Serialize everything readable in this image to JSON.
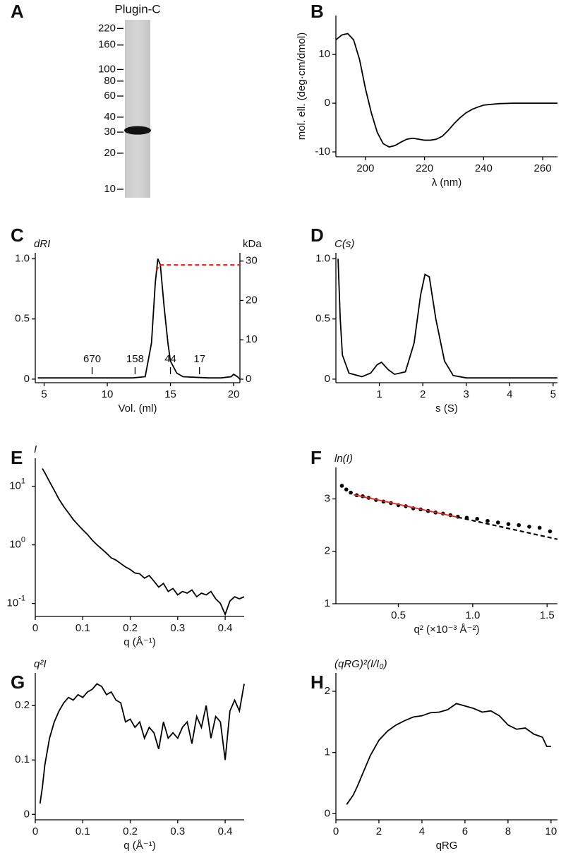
{
  "chart_data": [
    {
      "type": "gel",
      "panel": "A",
      "title": "Plugin-C",
      "markers": [
        220,
        160,
        100,
        80,
        60,
        40,
        30,
        20,
        10
      ],
      "band": 31,
      "ylim": [
        8.5,
        260
      ],
      "ylog": true
    },
    {
      "type": "line",
      "panel": "B",
      "xlabel": "λ (nm)",
      "ylabel": "mol. ell. (deg·cm/dmol)",
      "xlim": [
        190,
        265
      ],
      "ylim": [
        -11,
        18
      ],
      "xticks": [
        200,
        220,
        240,
        260
      ],
      "yticks": [
        -10,
        0,
        10
      ],
      "series": [
        {
          "color": "#000000",
          "style": "line",
          "x": [
            190,
            192,
            194,
            196,
            198,
            200,
            202,
            204,
            206,
            208,
            210,
            212,
            214,
            216,
            218,
            220,
            222,
            224,
            226,
            228,
            230,
            232,
            234,
            236,
            238,
            240,
            245,
            250,
            265
          ],
          "values": [
            13,
            14,
            14.3,
            13,
            9,
            3,
            -2,
            -6,
            -8.3,
            -9,
            -8.7,
            -8,
            -7.4,
            -7.2,
            -7.4,
            -7.6,
            -7.6,
            -7.4,
            -6.8,
            -5.6,
            -4.2,
            -3,
            -2,
            -1.3,
            -0.8,
            -0.4,
            -0.1,
            0,
            0
          ]
        }
      ]
    },
    {
      "type": "line",
      "panel": "C",
      "xlabel": "Vol. (ml)",
      "ylabel": "dRI",
      "y2label": "kDa",
      "xlim": [
        4.3,
        20.5
      ],
      "ylim": [
        -0.03,
        1.05
      ],
      "y2lim": [
        -0.9,
        32.1
      ],
      "xticks": [
        5,
        10,
        15,
        20
      ],
      "yticks": [
        0,
        0.5,
        {
          "value": 1,
          "label": "1.0"
        }
      ],
      "y2ticks": [
        0,
        10,
        20,
        30
      ],
      "markers": [
        {
          "x": 8.8,
          "label": "670"
        },
        {
          "x": 12.2,
          "label": "158"
        },
        {
          "x": 15,
          "label": "44"
        },
        {
          "x": 17.3,
          "label": "17"
        }
      ],
      "series": [
        {
          "color": "#000000",
          "style": "line",
          "x": [
            4.5,
            8,
            12,
            13,
            13.5,
            13.8,
            14,
            14.2,
            14.5,
            14.8,
            15,
            15.5,
            16,
            18,
            19,
            19.8,
            20,
            20.3,
            20.5
          ],
          "values": [
            0.01,
            0.01,
            0.01,
            0.02,
            0.3,
            0.8,
            1.0,
            0.95,
            0.6,
            0.3,
            0.15,
            0.05,
            0.02,
            0.01,
            0.01,
            0.02,
            0.04,
            0.02,
            0.0
          ]
        },
        {
          "color": "#e8231f",
          "style": "dashed",
          "axis": "y2",
          "x": [
            13.9,
            14.1,
            20.5
          ],
          "values": [
            27.5,
            29,
            29
          ]
        }
      ]
    },
    {
      "type": "line",
      "panel": "D",
      "xlabel": "s (S)",
      "ylabel": "C(s)",
      "xlim": [
        0,
        5.1
      ],
      "ylim": [
        -0.03,
        1.05
      ],
      "xticks": [
        1,
        2,
        3,
        4,
        5
      ],
      "yticks": [
        0,
        0.5,
        {
          "value": 1,
          "label": "1.0"
        }
      ],
      "series": [
        {
          "color": "#000000",
          "style": "line",
          "x": [
            0.05,
            0.1,
            0.15,
            0.3,
            0.6,
            0.8,
            0.95,
            1.05,
            1.2,
            1.35,
            1.6,
            1.8,
            1.95,
            2.05,
            2.15,
            2.3,
            2.5,
            2.7,
            3,
            5.1
          ],
          "values": [
            1.0,
            0.5,
            0.2,
            0.05,
            0.02,
            0.05,
            0.12,
            0.14,
            0.08,
            0.04,
            0.06,
            0.3,
            0.7,
            0.87,
            0.85,
            0.5,
            0.15,
            0.03,
            0.01,
            0.01
          ]
        }
      ]
    },
    {
      "type": "line",
      "panel": "E",
      "xlabel": "q (Å⁻¹)",
      "ylabel": "I",
      "ylog": true,
      "xlim": [
        0,
        0.44
      ],
      "ylim": [
        0.06,
        30
      ],
      "xticks": [
        0,
        0.1,
        0.2,
        0.3,
        0.4
      ],
      "yticks": [
        {
          "value": 0.1,
          "label": "10",
          "sup": "-1"
        },
        {
          "value": 1,
          "label": "10",
          "sup": "0"
        },
        {
          "value": 10,
          "label": "10",
          "sup": "1"
        }
      ],
      "series": [
        {
          "color": "#000000",
          "style": "line",
          "x": [
            0.015,
            0.02,
            0.03,
            0.04,
            0.05,
            0.06,
            0.07,
            0.08,
            0.09,
            0.1,
            0.11,
            0.12,
            0.13,
            0.14,
            0.15,
            0.16,
            0.17,
            0.18,
            0.19,
            0.2,
            0.21,
            0.22,
            0.23,
            0.24,
            0.25,
            0.26,
            0.27,
            0.28,
            0.29,
            0.3,
            0.31,
            0.32,
            0.33,
            0.34,
            0.35,
            0.36,
            0.37,
            0.38,
            0.39,
            0.4,
            0.41,
            0.42,
            0.43,
            0.44
          ],
          "values": [
            20,
            17,
            12,
            8.5,
            6,
            4.5,
            3.5,
            2.7,
            2.2,
            1.8,
            1.5,
            1.2,
            1.0,
            0.85,
            0.72,
            0.6,
            0.55,
            0.48,
            0.42,
            0.38,
            0.33,
            0.32,
            0.27,
            0.3,
            0.24,
            0.19,
            0.22,
            0.16,
            0.18,
            0.14,
            0.16,
            0.15,
            0.17,
            0.13,
            0.15,
            0.14,
            0.16,
            0.12,
            0.1,
            0.065,
            0.11,
            0.13,
            0.12,
            0.13
          ]
        }
      ]
    },
    {
      "type": "line",
      "panel": "F",
      "xlabel": "q² (×10⁻³ Å⁻²)",
      "ylabel": "ln(I)",
      "xlim": [
        0.08,
        1.57
      ],
      "ylim": [
        1,
        3.6
      ],
      "xticks": [
        0.5,
        {
          "value": 1,
          "label": "1.0"
        },
        1.5
      ],
      "yticks": [
        1,
        2,
        3
      ],
      "series": [
        {
          "color": "#000000",
          "style": "points",
          "x": [
            0.12,
            0.15,
            0.18,
            0.22,
            0.26,
            0.3,
            0.35,
            0.4,
            0.45,
            0.5,
            0.55,
            0.6,
            0.65,
            0.7,
            0.75,
            0.8,
            0.85,
            0.9,
            0.96,
            1.03,
            1.1,
            1.17,
            1.24,
            1.31,
            1.38,
            1.45,
            1.52
          ],
          "values": [
            3.25,
            3.18,
            3.12,
            3.07,
            3.05,
            3.02,
            2.98,
            2.95,
            2.92,
            2.88,
            2.86,
            2.82,
            2.8,
            2.77,
            2.74,
            2.72,
            2.69,
            2.66,
            2.64,
            2.62,
            2.58,
            2.55,
            2.52,
            2.5,
            2.47,
            2.45,
            2.38
          ]
        },
        {
          "color": "#e8231f",
          "style": "line",
          "x": [
            0.2,
            0.9
          ],
          "values": [
            3.08,
            2.65
          ]
        },
        {
          "color": "#000000",
          "style": "dashed",
          "x": [
            0.9,
            1.57
          ],
          "values": [
            2.65,
            2.23
          ]
        }
      ]
    },
    {
      "type": "line",
      "panel": "G",
      "xlabel": "q (Å⁻¹)",
      "ylabel": "q²I",
      "xlim": [
        0,
        0.44
      ],
      "ylim": [
        -0.01,
        0.26
      ],
      "xticks": [
        0,
        0.1,
        0.2,
        0.3,
        0.4
      ],
      "yticks": [
        0,
        0.1,
        0.2
      ],
      "series": [
        {
          "color": "#000000",
          "style": "line",
          "x": [
            0.01,
            0.015,
            0.02,
            0.03,
            0.04,
            0.05,
            0.06,
            0.07,
            0.08,
            0.09,
            0.1,
            0.11,
            0.12,
            0.13,
            0.14,
            0.15,
            0.16,
            0.17,
            0.18,
            0.19,
            0.2,
            0.21,
            0.22,
            0.23,
            0.24,
            0.25,
            0.26,
            0.27,
            0.28,
            0.29,
            0.3,
            0.31,
            0.32,
            0.33,
            0.34,
            0.35,
            0.36,
            0.37,
            0.38,
            0.39,
            0.4,
            0.41,
            0.42,
            0.43,
            0.44
          ],
          "values": [
            0.02,
            0.05,
            0.09,
            0.14,
            0.17,
            0.19,
            0.205,
            0.215,
            0.21,
            0.22,
            0.215,
            0.225,
            0.23,
            0.24,
            0.235,
            0.22,
            0.225,
            0.21,
            0.205,
            0.17,
            0.175,
            0.16,
            0.17,
            0.14,
            0.16,
            0.15,
            0.12,
            0.17,
            0.14,
            0.15,
            0.14,
            0.16,
            0.17,
            0.13,
            0.18,
            0.16,
            0.2,
            0.14,
            0.18,
            0.17,
            0.1,
            0.19,
            0.21,
            0.19,
            0.24
          ]
        }
      ]
    },
    {
      "type": "line",
      "panel": "H",
      "xlabel": "qRG",
      "ylabel": "(qRG)²(I/I₀)",
      "xlim": [
        0,
        10.3
      ],
      "ylim": [
        -0.1,
        2.3
      ],
      "xticks": [
        0,
        2,
        4,
        6,
        8,
        10
      ],
      "yticks": [
        0,
        1,
        2
      ],
      "series": [
        {
          "color": "#000000",
          "style": "line",
          "x": [
            0.5,
            0.8,
            1,
            1.3,
            1.6,
            2,
            2.4,
            2.8,
            3.2,
            3.6,
            4,
            4.4,
            4.8,
            5.2,
            5.6,
            6,
            6.4,
            6.8,
            7.2,
            7.6,
            8,
            8.4,
            8.8,
            9.2,
            9.6,
            9.8,
            10
          ],
          "values": [
            0.15,
            0.3,
            0.45,
            0.7,
            0.95,
            1.2,
            1.35,
            1.45,
            1.52,
            1.58,
            1.6,
            1.65,
            1.66,
            1.7,
            1.8,
            1.76,
            1.72,
            1.66,
            1.68,
            1.6,
            1.45,
            1.38,
            1.4,
            1.3,
            1.25,
            1.1,
            1.1
          ]
        }
      ]
    }
  ]
}
